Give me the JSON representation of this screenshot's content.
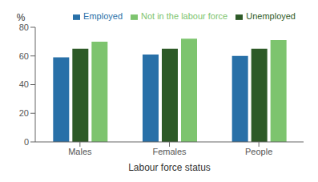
{
  "chart_data": {
    "type": "bar",
    "categories": [
      "Males",
      "Females",
      "People"
    ],
    "series": [
      {
        "name": "Employed",
        "color": "#2870a8",
        "values": [
          59,
          61,
          60
        ]
      },
      {
        "name": "Unemployed",
        "color": "#2d5a27",
        "values": [
          65,
          65,
          65
        ]
      },
      {
        "name": "Not in the labour force",
        "color": "#7dc46e",
        "values": [
          70,
          72,
          71
        ]
      }
    ],
    "xlabel": "Labour force status",
    "ylabel": "%",
    "ylim": [
      0,
      80
    ],
    "yticks": [
      0,
      20,
      40,
      60,
      80
    ],
    "grid": false,
    "legend": "upper right"
  }
}
